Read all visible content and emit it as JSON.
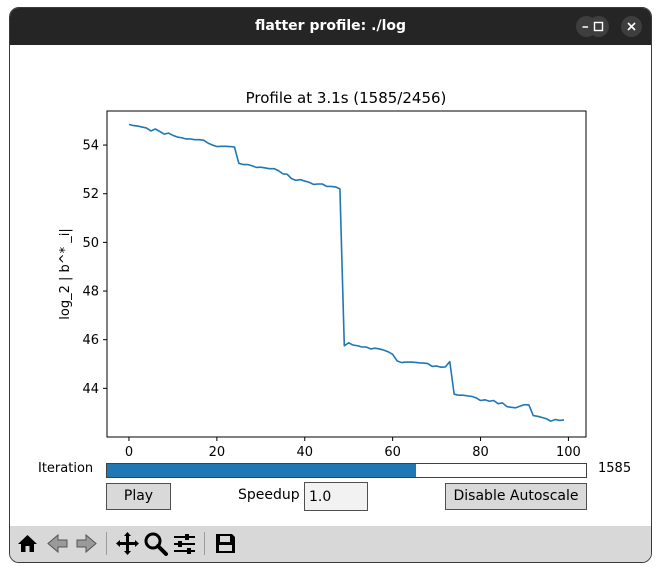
{
  "window": {
    "title": "flatter profile: ./log",
    "controls": [
      "minimize",
      "maximize",
      "close"
    ]
  },
  "chart_data": {
    "type": "line",
    "title": "Profile at 3.1s (1585/2456)",
    "xlabel": "",
    "ylabel": "log_2 | b^* _i|",
    "xlim": [
      -5,
      104
    ],
    "ylim": [
      42.0,
      55.4
    ],
    "xticks": [
      0,
      20,
      40,
      60,
      80,
      100
    ],
    "yticks": [
      44,
      46,
      48,
      50,
      52,
      54
    ],
    "grid": false,
    "line_color": "#1f77b4",
    "series": [
      {
        "x": [
          0,
          1,
          2,
          3,
          4,
          5,
          6,
          7,
          8,
          9,
          10,
          11,
          12,
          13,
          14,
          15,
          16,
          17,
          18,
          19,
          20,
          21,
          22,
          23,
          24,
          25,
          26,
          27,
          28,
          29,
          30,
          31,
          32,
          33,
          34,
          35,
          36,
          37,
          38,
          39,
          40,
          41,
          42,
          43,
          44,
          45,
          46,
          47,
          48,
          49,
          50,
          51,
          52,
          53,
          54,
          55,
          56,
          57,
          58,
          59,
          60,
          61,
          62,
          63,
          64,
          65,
          66,
          67,
          68,
          69,
          70,
          71,
          72,
          73,
          74,
          75,
          76,
          77,
          78,
          79,
          80,
          81,
          82,
          83,
          84,
          85,
          86,
          87,
          88,
          89,
          90,
          91,
          92,
          93,
          94,
          95,
          96,
          97,
          98,
          99
        ],
        "y": [
          54.85,
          54.8,
          54.78,
          54.74,
          54.7,
          54.58,
          54.66,
          54.56,
          54.45,
          54.49,
          54.4,
          54.33,
          54.3,
          54.25,
          54.25,
          54.22,
          54.22,
          54.2,
          54.08,
          54.0,
          53.94,
          53.95,
          53.95,
          53.94,
          53.92,
          53.25,
          53.2,
          53.2,
          53.15,
          53.08,
          53.09,
          53.06,
          53.03,
          53.03,
          52.95,
          52.82,
          52.8,
          52.62,
          52.55,
          52.58,
          52.52,
          52.47,
          52.38,
          52.4,
          52.4,
          52.3,
          52.3,
          52.28,
          52.2,
          45.75,
          45.87,
          45.78,
          45.75,
          45.7,
          45.7,
          45.62,
          45.65,
          45.62,
          45.57,
          45.5,
          45.4,
          45.13,
          45.06,
          45.08,
          45.08,
          45.07,
          45.05,
          45.04,
          45.02,
          44.9,
          44.92,
          44.87,
          44.88,
          45.1,
          43.76,
          43.72,
          43.72,
          43.69,
          43.67,
          43.61,
          43.5,
          43.53,
          43.47,
          43.5,
          43.37,
          43.4,
          43.25,
          43.22,
          43.2,
          43.27,
          43.33,
          43.32,
          42.88,
          42.85,
          42.8,
          42.75,
          42.65,
          42.72,
          42.68,
          42.7
        ]
      }
    ]
  },
  "slider": {
    "label": "Iteration",
    "value": 1585,
    "value_text": "1585",
    "max": 2456
  },
  "controls": {
    "play_label": "Play",
    "speedup_label": "Speedup",
    "speedup_value": "1.0",
    "autoscale_label": "Disable Autoscale"
  },
  "toolbar": {
    "items": [
      "home-icon",
      "back-icon",
      "forward-icon",
      "pan-icon",
      "zoom-icon",
      "configure-subplots-icon",
      "save-icon"
    ]
  }
}
